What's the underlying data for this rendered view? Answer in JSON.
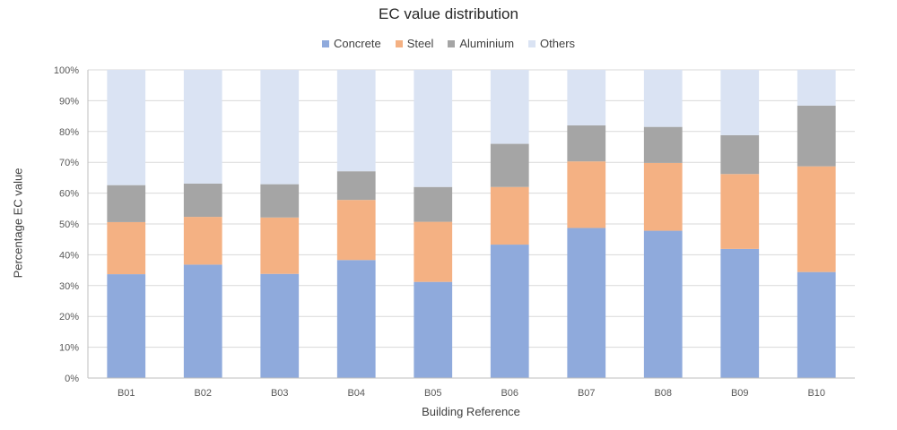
{
  "chart_data": {
    "type": "bar",
    "stacked": true,
    "percent_stacked": true,
    "title": "EC value distribution",
    "xlabel": "Building Reference",
    "ylabel": "Percentage EC value",
    "ylim": [
      0,
      100
    ],
    "yticks": [
      "0%",
      "10%",
      "20%",
      "30%",
      "40%",
      "50%",
      "60%",
      "70%",
      "80%",
      "90%",
      "100%"
    ],
    "grid": true,
    "legend_position": "top-center",
    "categories": [
      "B01",
      "B02",
      "B03",
      "B04",
      "B05",
      "B06",
      "B07",
      "B08",
      "B09",
      "B10"
    ],
    "series": [
      {
        "name": "Concrete",
        "color": "#8FAADC",
        "values": [
          33.7,
          36.8,
          33.8,
          38.3,
          31.2,
          43.3,
          48.7,
          47.8,
          41.9,
          34.4
        ]
      },
      {
        "name": "Steel",
        "color": "#F4B183",
        "values": [
          16.9,
          15.5,
          18.3,
          19.5,
          19.5,
          18.7,
          21.6,
          22.0,
          24.3,
          34.3
        ]
      },
      {
        "name": "Aluminium",
        "color": "#A5A5A5",
        "values": [
          12.0,
          10.8,
          10.8,
          9.3,
          11.3,
          14.0,
          11.7,
          11.7,
          12.6,
          19.7
        ]
      },
      {
        "name": "Others",
        "color": "#DAE3F3",
        "values": [
          37.4,
          36.9,
          37.1,
          32.9,
          38.0,
          24.0,
          18.0,
          18.5,
          21.2,
          11.6
        ]
      }
    ]
  }
}
